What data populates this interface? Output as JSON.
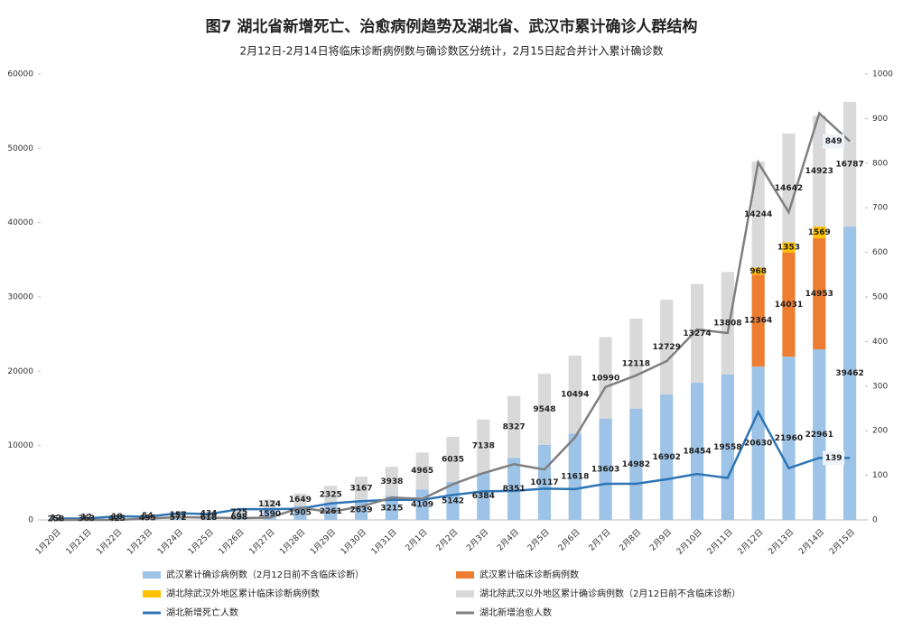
{
  "chart_data": {
    "type": "bar",
    "title": "图7 湖北省新增死亡、治愈病例趋势及湖北省、武汉市累计确诊人群结构",
    "subtitle": "2月12日-2月14日将临床诊断病例数与确诊数区分统计，2月15日起合并计入累计确诊数",
    "categories": [
      "1月20日",
      "1月21日",
      "1月22日",
      "1月23日",
      "1月24日",
      "1月25日",
      "1月26日",
      "1月27日",
      "1月28日",
      "1月29日",
      "1月30日",
      "1月31日",
      "2月1日",
      "2月2日",
      "2月3日",
      "2月4日",
      "2月5日",
      "2月6日",
      "2月7日",
      "2月8日",
      "2月9日",
      "2月10日",
      "2月11日",
      "2月12日",
      "2月13日",
      "2月14日",
      "2月15日"
    ],
    "ylim": [
      0,
      60000
    ],
    "yticks": [
      0,
      10000,
      20000,
      30000,
      40000,
      50000,
      60000
    ],
    "y2lim": [
      0,
      1000
    ],
    "y2ticks": [
      0,
      100,
      200,
      300,
      400,
      500,
      600,
      700,
      800,
      900,
      1000
    ],
    "stacked": true,
    "legend": "bottom",
    "series": [
      {
        "name": "武汉累计确诊病例数（2月12日前不含临床诊断）",
        "type": "bar",
        "color": "#9dc3e6",
        "values": [
          258,
          363,
          425,
          495,
          572,
          618,
          698,
          1590,
          1905,
          2261,
          2639,
          3215,
          4109,
          5142,
          6384,
          8351,
          10117,
          11618,
          13603,
          14982,
          16902,
          18454,
          19558,
          20630,
          21960,
          22961,
          39462
        ]
      },
      {
        "name": "武汉累计临床诊断病例数",
        "type": "bar",
        "color": "#ed7d31",
        "values": [
          null,
          null,
          null,
          null,
          null,
          null,
          null,
          null,
          null,
          null,
          null,
          null,
          null,
          null,
          null,
          null,
          null,
          null,
          null,
          null,
          null,
          null,
          null,
          12364,
          14031,
          14953,
          null
        ]
      },
      {
        "name": "湖北除武汉外地区累计临床诊断病例数",
        "type": "bar",
        "color": "#ffc000",
        "values": [
          null,
          null,
          null,
          null,
          null,
          null,
          null,
          null,
          null,
          null,
          null,
          null,
          null,
          null,
          null,
          null,
          null,
          null,
          null,
          null,
          null,
          null,
          null,
          968,
          1353,
          1569,
          null
        ]
      },
      {
        "name": "湖北除武汉以外地区累计确诊病例数（2月12日前不含临床诊断）",
        "type": "bar",
        "color": "#d9d9d9",
        "values": [
          12,
          12,
          18,
          54,
          157,
          434,
          725,
          1124,
          1649,
          2325,
          3167,
          3938,
          4965,
          6035,
          7138,
          8327,
          9548,
          10494,
          10990,
          12118,
          12729,
          13274,
          13808,
          14244,
          14642,
          14923,
          16787
        ]
      },
      {
        "name": "湖北新增死亡人数",
        "type": "line",
        "axis": "y2",
        "color": "#2e75b6",
        "values": [
          3,
          3,
          8,
          7,
          15,
          13,
          24,
          24,
          25,
          37,
          42,
          45,
          45,
          56,
          64,
          65,
          70,
          69,
          81,
          81,
          91,
          103,
          94,
          242,
          116,
          139,
          139
        ]
      },
      {
        "name": "湖北新增治愈人数",
        "type": "line",
        "axis": "y2",
        "color": "#7f7f7f",
        "values": [
          0,
          0,
          0,
          3,
          6,
          5,
          4,
          5,
          27,
          18,
          30,
          50,
          47,
          80,
          105,
          125,
          113,
          185,
          298,
          324,
          356,
          427,
          419,
          802,
          690,
          912,
          849
        ]
      }
    ]
  }
}
